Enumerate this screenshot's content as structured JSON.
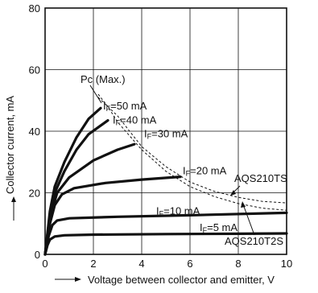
{
  "chart_data": {
    "type": "line",
    "xlabel": "Voltage between collector and emitter, V",
    "ylabel": "Collector current, mA",
    "xlim": [
      0,
      10
    ],
    "ylim": [
      0,
      80
    ],
    "x_ticks": [
      "0",
      "2",
      "4",
      "6",
      "8",
      "10"
    ],
    "y_ticks": [
      "0",
      "20",
      "40",
      "60",
      "80"
    ],
    "grid": true,
    "series": [
      {
        "name": "IF=5 mA",
        "label_main": "I",
        "label_sub": "F",
        "label_rest": "=5 mA",
        "points": [
          [
            0,
            0
          ],
          [
            0.1,
            3
          ],
          [
            0.2,
            4.8
          ],
          [
            0.4,
            5.8
          ],
          [
            0.8,
            6.2
          ],
          [
            2,
            6.4
          ],
          [
            5,
            6.6
          ],
          [
            8,
            6.7
          ],
          [
            10,
            6.8
          ]
        ]
      },
      {
        "name": "IF=10 mA",
        "label_main": "I",
        "label_sub": "F",
        "label_rest": "=10 mA",
        "points": [
          [
            0,
            0
          ],
          [
            0.15,
            6
          ],
          [
            0.3,
            9.5
          ],
          [
            0.5,
            11
          ],
          [
            1,
            11.7
          ],
          [
            3,
            12.2
          ],
          [
            6,
            12.7
          ],
          [
            10,
            13.5
          ]
        ]
      },
      {
        "name": "IF=20 mA",
        "label_main": "I",
        "label_sub": "F",
        "label_rest": "=20 mA",
        "points": [
          [
            0,
            0
          ],
          [
            0.2,
            10
          ],
          [
            0.4,
            16
          ],
          [
            0.7,
            19.5
          ],
          [
            1.2,
            21.5
          ],
          [
            2.5,
            23.2
          ],
          [
            4,
            24.3
          ],
          [
            5.6,
            25.2
          ]
        ]
      },
      {
        "name": "IF=30 mA",
        "label_main": "I",
        "label_sub": "F",
        "label_rest": "=30 mA",
        "points": [
          [
            0,
            0
          ],
          [
            0.2,
            12
          ],
          [
            0.5,
            20
          ],
          [
            1,
            25
          ],
          [
            2,
            30.5
          ],
          [
            3,
            34
          ],
          [
            3.7,
            35.8
          ]
        ]
      },
      {
        "name": "IF=40 mA",
        "label_main": "I",
        "label_sub": "F",
        "label_rest": "=40 mA",
        "points": [
          [
            0,
            0
          ],
          [
            0.2,
            13
          ],
          [
            0.4,
            20
          ],
          [
            0.8,
            27
          ],
          [
            1.3,
            34
          ],
          [
            1.8,
            39
          ],
          [
            2.6,
            43.5
          ]
        ]
      },
      {
        "name": "IF=50 mA",
        "label_main": "I",
        "label_sub": "F",
        "label_rest": "=50 mA",
        "points": [
          [
            0,
            0
          ],
          [
            0.2,
            14
          ],
          [
            0.4,
            22
          ],
          [
            0.8,
            30
          ],
          [
            1.3,
            38
          ],
          [
            1.8,
            44
          ],
          [
            2.3,
            47.5
          ]
        ]
      }
    ],
    "power_limits": [
      {
        "name": "AQS210TS",
        "points": [
          [
            2.2,
            51
          ],
          [
            3,
            45
          ],
          [
            4,
            35
          ],
          [
            5,
            28.5
          ],
          [
            6,
            23.5
          ],
          [
            7,
            20.5
          ],
          [
            8,
            18.5
          ],
          [
            9,
            17.2
          ],
          [
            10,
            16.7
          ]
        ]
      },
      {
        "name": "AQS210T2S",
        "points": [
          [
            2.2,
            52
          ],
          [
            2.6,
            48
          ],
          [
            3,
            43
          ],
          [
            4,
            34
          ],
          [
            5,
            27
          ],
          [
            6,
            22
          ],
          [
            7,
            18.8
          ],
          [
            8,
            16.5
          ],
          [
            9,
            15
          ],
          [
            10,
            14.3
          ]
        ]
      }
    ],
    "annotations": {
      "pc_max": "Pc (Max.)",
      "aqs210ts": "AQS210TS",
      "aqs210t2s": "AQS210T2S"
    }
  }
}
